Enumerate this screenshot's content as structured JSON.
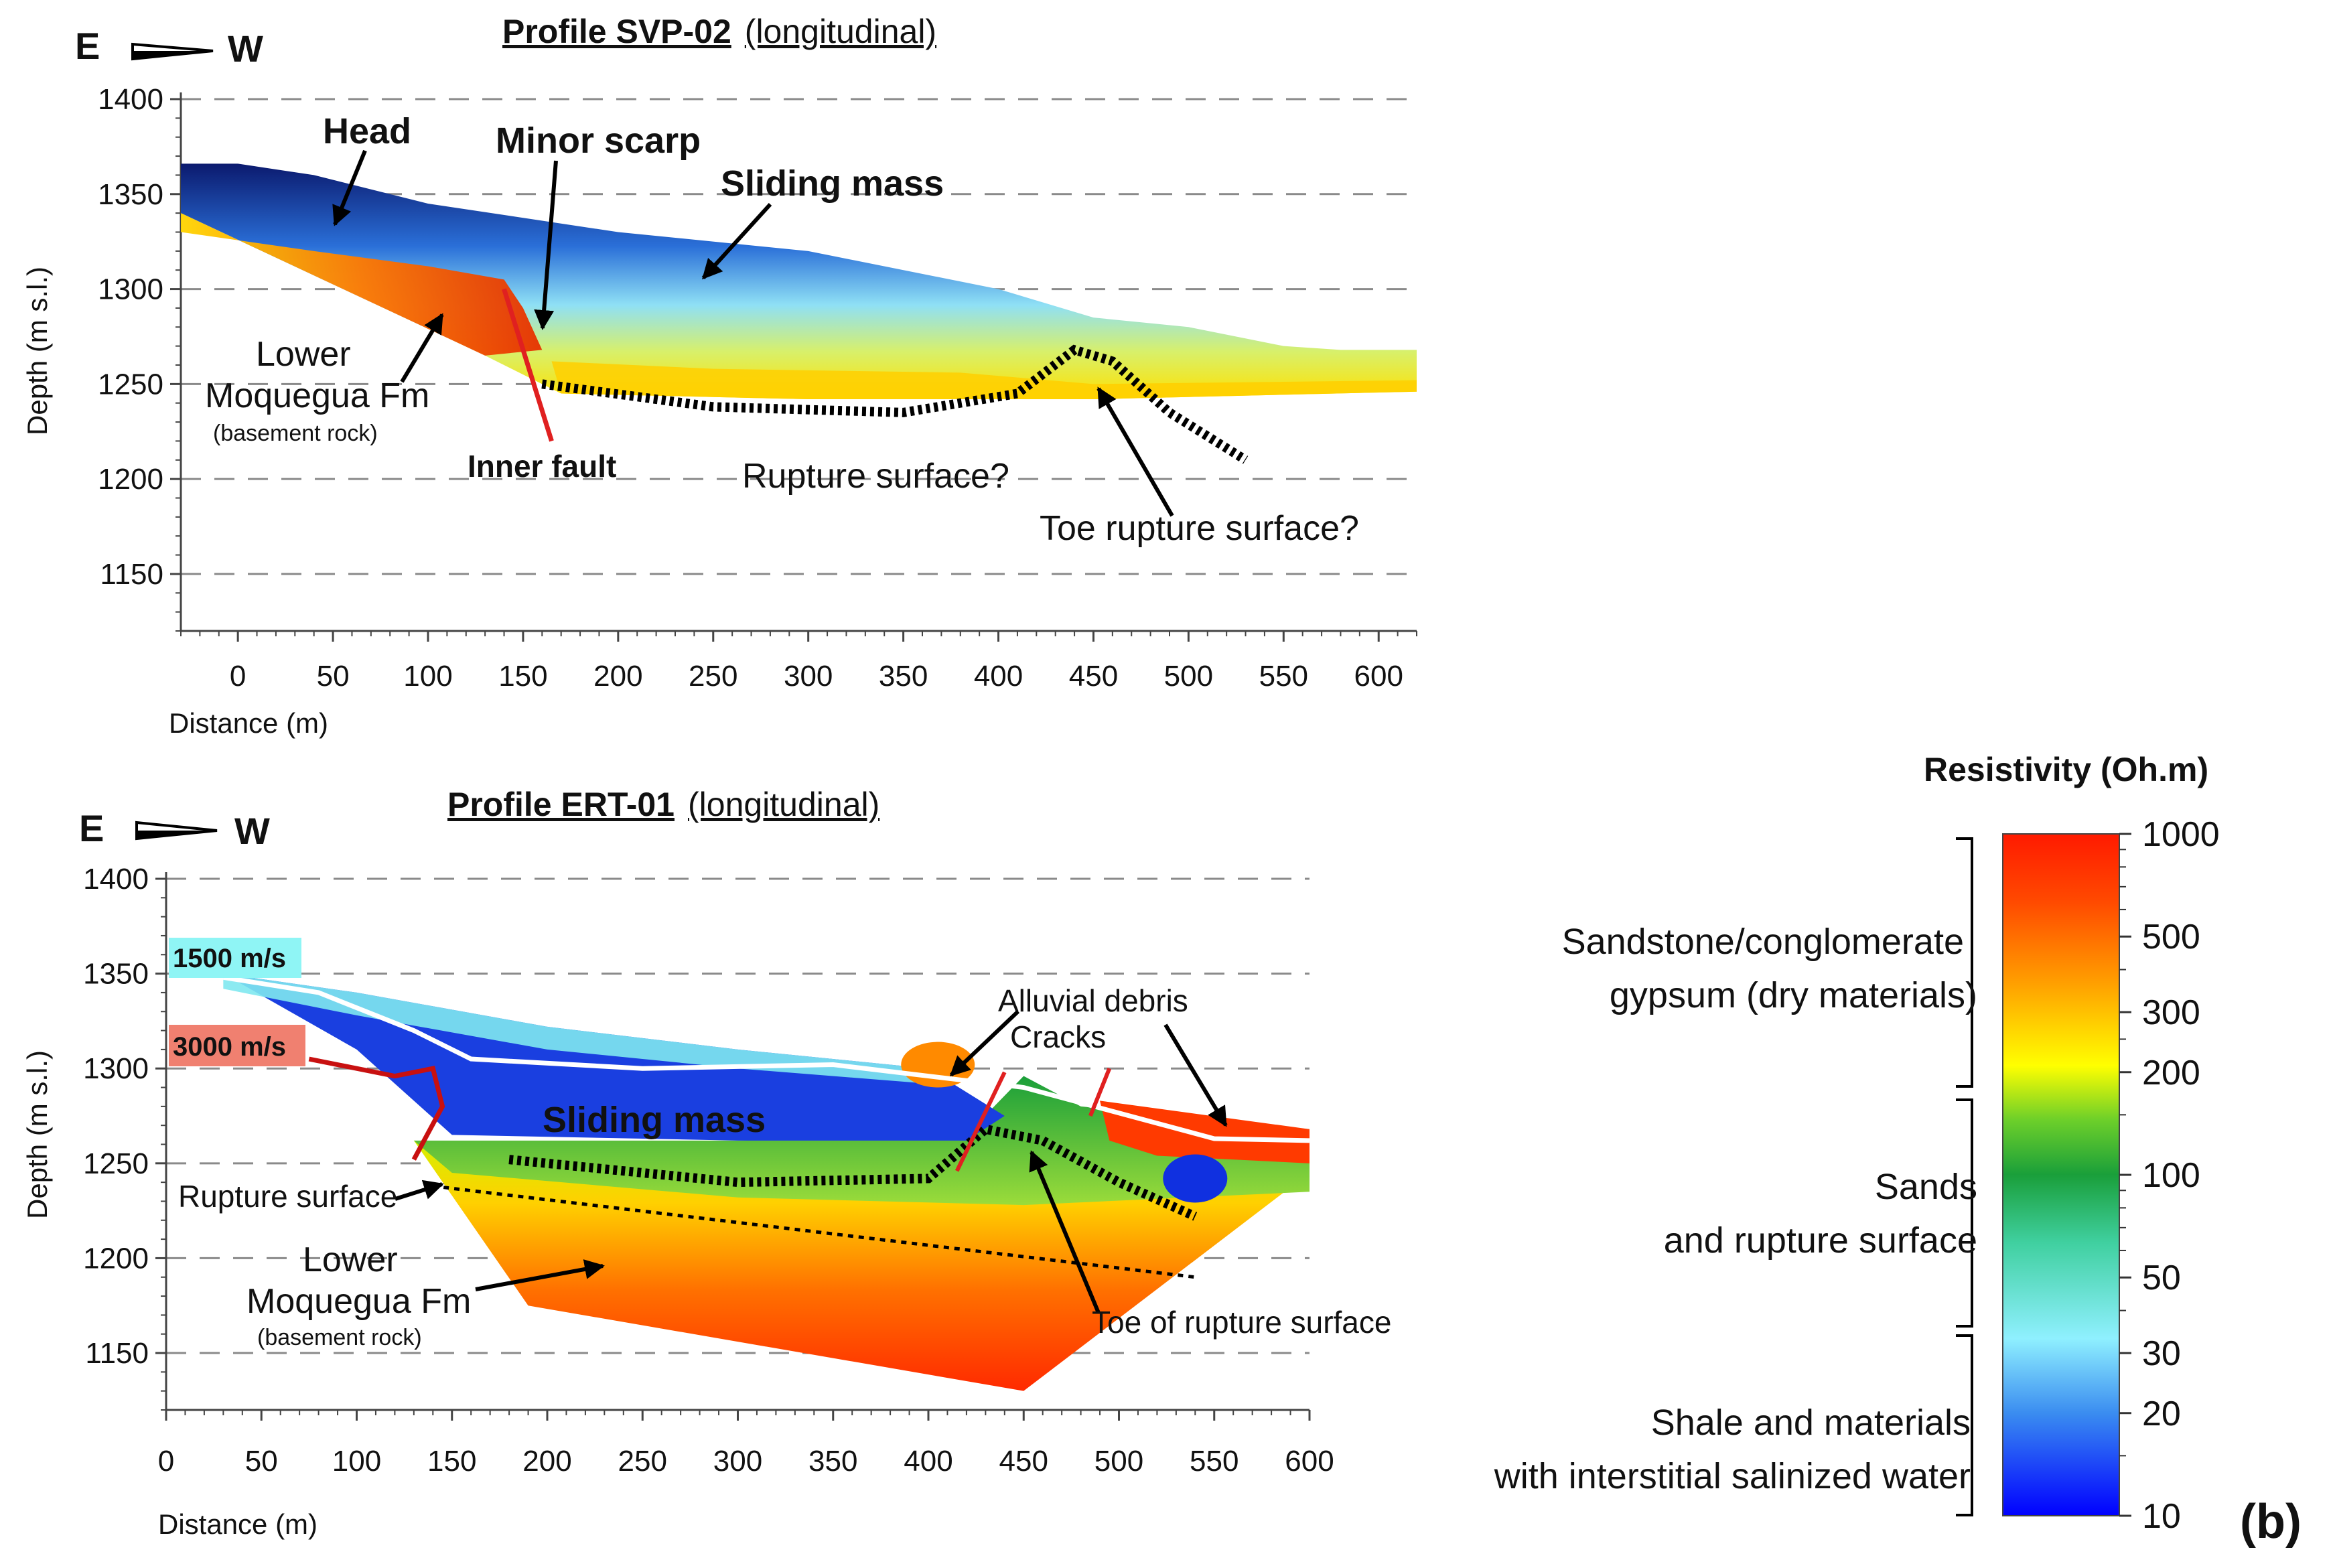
{
  "panel_label": "(b)",
  "colorbar": {
    "title": "Resistivity (Oh.m)",
    "ticks": [
      1000,
      500,
      300,
      200,
      100,
      50,
      30,
      20,
      10
    ],
    "range": [
      10,
      1000
    ],
    "scale": "log",
    "colors": [
      "#0000ff",
      "#3a8cf0",
      "#8ff0ff",
      "#40d0a0",
      "#1a9f3a",
      "#6ccf2a",
      "#ffff00",
      "#ffa000",
      "#ff4a00",
      "#ff1a00"
    ],
    "groups": [
      {
        "lines": [
          "Sandstone/conglomerate",
          "gypsum (dry materials)"
        ]
      },
      {
        "lines": [
          "Sands",
          "and rupture surface"
        ]
      },
      {
        "lines": [
          "Shale and materials",
          "with interstitial salinized water"
        ]
      }
    ]
  },
  "chart_data": [
    {
      "type": "heatmap",
      "title": "Profile SVP-02",
      "subtitle": "(longitudinal)",
      "direction": {
        "left": "E",
        "right": "W"
      },
      "xlabel": "Distance (m)",
      "ylabel": "Depth (m s.l.)",
      "xlim": [
        -30,
        620
      ],
      "ylim": [
        1120,
        1400
      ],
      "xticks": [
        0,
        50,
        100,
        150,
        200,
        250,
        300,
        350,
        400,
        450,
        500,
        550,
        600
      ],
      "yticks": [
        1400,
        1350,
        1300,
        1250,
        1200,
        1150
      ],
      "surface_profile": [
        [
          -30,
          1366
        ],
        [
          0,
          1366
        ],
        [
          40,
          1360
        ],
        [
          100,
          1345
        ],
        [
          200,
          1330
        ],
        [
          300,
          1320
        ],
        [
          400,
          1300
        ],
        [
          450,
          1285
        ],
        [
          500,
          1280
        ],
        [
          550,
          1270
        ],
        [
          580,
          1268
        ],
        [
          620,
          1268
        ]
      ],
      "bottom_profile": [
        [
          620,
          1246
        ],
        [
          450,
          1242
        ],
        [
          300,
          1242
        ],
        [
          170,
          1245
        ],
        [
          130,
          1265
        ],
        [
          -30,
          1340
        ]
      ],
      "annotations": [
        {
          "text": "Head",
          "bold": true
        },
        {
          "text": "Minor scarp",
          "bold": true
        },
        {
          "text": "Sliding mass",
          "bold": true
        },
        {
          "text": "Lower"
        },
        {
          "text": "Moquegua Fm"
        },
        {
          "text": "(basement rock)"
        },
        {
          "text": "Inner fault",
          "color": "#e02020"
        },
        {
          "text": "Rupture surface?"
        },
        {
          "text": "Toe rupture surface?"
        }
      ]
    },
    {
      "type": "heatmap",
      "title": "Profile ERT-01",
      "subtitle": "(longitudinal)",
      "direction": {
        "left": "E",
        "right": "W"
      },
      "xlabel": "Distance (m)",
      "ylabel": "Depth (m s.l.)",
      "xlim": [
        0,
        600
      ],
      "ylim": [
        1120,
        1400
      ],
      "xticks": [
        0,
        50,
        100,
        150,
        200,
        250,
        300,
        350,
        400,
        450,
        500,
        550,
        600
      ],
      "yticks": [
        1400,
        1350,
        1300,
        1250,
        1200,
        1150
      ],
      "surface_profile": [
        [
          30,
          1350
        ],
        [
          100,
          1340
        ],
        [
          200,
          1322
        ],
        [
          300,
          1310
        ],
        [
          400,
          1300
        ],
        [
          500,
          1280
        ],
        [
          600,
          1268
        ]
      ],
      "bottom_profile": [
        [
          600,
          1245
        ],
        [
          450,
          1130
        ],
        [
          190,
          1175
        ],
        [
          100,
          1310
        ],
        [
          30,
          1350
        ]
      ],
      "velocity_labels": [
        {
          "text": "1500 m/s",
          "color": "#8ff5f5",
          "text_color": "#1030e0"
        },
        {
          "text": "3000 m/s",
          "color": "#f08070",
          "text_color": "#b01010"
        }
      ],
      "annotations": [
        {
          "text": "Sliding mass",
          "bold": true,
          "color": "#ffffff"
        },
        {
          "text": "Alluvial debris"
        },
        {
          "text": "Cracks",
          "color": "#e02020"
        },
        {
          "text": "Rupture surface"
        },
        {
          "text": "Lower"
        },
        {
          "text": "Moquegua Fm"
        },
        {
          "text": "(basement rock)"
        },
        {
          "text": "Toe of rupture surface"
        }
      ]
    }
  ]
}
